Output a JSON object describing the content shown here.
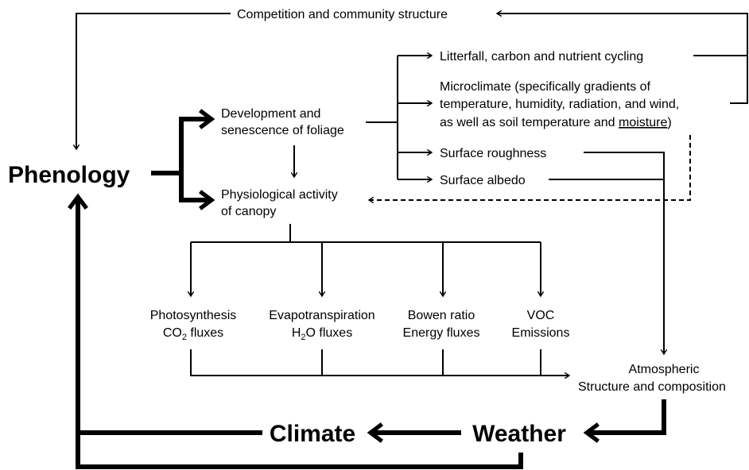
{
  "top_feedback": "Competition and community structure",
  "phenology": "Phenology",
  "foliage": {
    "lines": [
      "Development and",
      "senescence of foliage"
    ]
  },
  "physiology": {
    "lines": [
      "Physiological activity",
      "of canopy"
    ]
  },
  "effects": {
    "litterfall": "Litterfall, carbon and nutrient cycling",
    "microclimate": {
      "line1": "Microclimate (specifically gradients of",
      "line2": "temperature, humidity, radiation, and wind,",
      "line3": [
        "as well as soil temperature and ",
        "moisture",
        ")"
      ]
    },
    "roughness": "Surface roughness",
    "albedo": "Surface albedo"
  },
  "fluxes": [
    {
      "line1": "Photosynthesis",
      "line2": [
        "CO",
        "2",
        " fluxes"
      ]
    },
    {
      "line1": "Evapotranspiration",
      "line2": [
        "H",
        "2",
        "O fluxes"
      ]
    },
    {
      "line1": "Bowen ratio",
      "line2": [
        "Energy fluxes"
      ]
    },
    {
      "line1": "VOC",
      "line2": [
        "Emissions"
      ]
    }
  ],
  "atmosphere": {
    "lines": [
      "Atmospheric",
      "Structure and composition"
    ]
  },
  "weather": "Weather",
  "climate": "Climate"
}
